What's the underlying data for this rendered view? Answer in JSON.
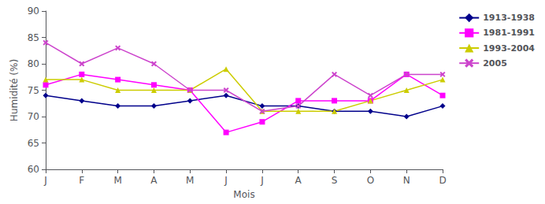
{
  "chart_data": {
    "type": "line",
    "xlabel": "Mois",
    "ylabel": "Humidité (%)",
    "categories": [
      "J",
      "F",
      "M",
      "A",
      "M",
      "J",
      "J",
      "A",
      "S",
      "O",
      "N",
      "D"
    ],
    "series": [
      {
        "name": "1913-1938",
        "color": "#00008B",
        "marker": "diamond",
        "values": [
          74,
          73,
          72,
          72,
          73,
          74,
          72,
          72,
          71,
          71,
          70,
          72
        ]
      },
      {
        "name": "1981-1991",
        "color": "#FF00FF",
        "marker": "square",
        "values": [
          76,
          78,
          77,
          76,
          75,
          67,
          69,
          73,
          73,
          73,
          78,
          74
        ]
      },
      {
        "name": "1993-2004",
        "color": "#CCCC00",
        "marker": "triangle",
        "values": [
          77,
          77,
          75,
          75,
          75,
          79,
          71,
          71,
          71,
          73,
          75,
          77
        ]
      },
      {
        "name": "2005",
        "color": "#CC44CC",
        "marker": "x",
        "values": [
          84,
          80,
          83,
          80,
          75,
          75,
          71,
          72,
          78,
          74,
          78,
          78
        ]
      }
    ],
    "ylim": [
      60,
      90
    ],
    "yticks": [
      60,
      65,
      70,
      75,
      80,
      85,
      90
    ],
    "grid": false,
    "legend": "right"
  }
}
